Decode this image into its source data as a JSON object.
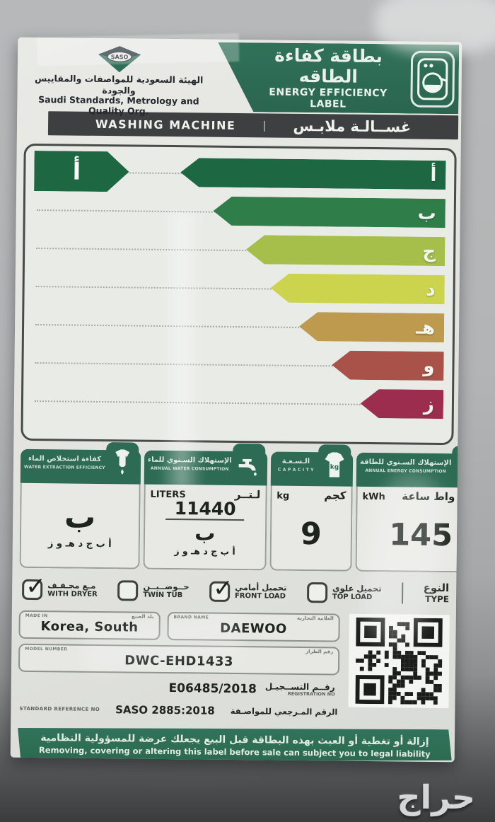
{
  "photo": {
    "watermark_text": "حراج"
  },
  "header": {
    "logo_text": "SASO",
    "org_ar": "الهيئة السعودية للمواصفات والمقاييس والجودة",
    "org_en": "Saudi Standards, Metrology and Quality Org.",
    "banner_title_ar": "بطاقة كفاءة الطاقه",
    "banner_title_en": "ENERGY EFFICIENCY LABEL"
  },
  "product_bar": {
    "en": "WASHING MACHINE",
    "separator": "|",
    "ar": "غســالـة ملابـس"
  },
  "rating": {
    "selected_letter": "أ",
    "scale": [
      {
        "letter": "أ",
        "color": "#1d6742",
        "width_pct": 64
      },
      {
        "letter": "ب",
        "color": "#2f7d49",
        "width_pct": 56
      },
      {
        "letter": "ج",
        "color": "#a6bf4b",
        "width_pct": 48
      },
      {
        "letter": "د",
        "color": "#ccd44d",
        "width_pct": 42
      },
      {
        "letter": "هـ",
        "color": "#bd9a4e",
        "width_pct": 35
      },
      {
        "letter": "و",
        "color": "#a85249",
        "width_pct": 27
      },
      {
        "letter": "ز",
        "color": "#9d2d4e",
        "width_pct": 20
      }
    ]
  },
  "metrics": {
    "water_extraction": {
      "title_ar": "كفاءة استخلاص الماء",
      "title_en": "WATER EXTRACTION EFFICIENCY",
      "grade": "ب",
      "scale_letters": "أ ب ج د هـ و ز"
    },
    "water_consumption": {
      "title_ar": "الإستهلاك السـنوي للماء",
      "title_en": "ANNUAL WATER CONSUMPTION",
      "unit_en": "LITERS",
      "unit_ar": "لـتــر",
      "value": "11440",
      "grade": "ب",
      "scale_letters": "أ ب ج د هـ و ز"
    },
    "capacity": {
      "title_ar": "الـسـعـة",
      "title_en": "C A P A C I T Y",
      "unit_en": "kg",
      "unit_ar": "كجم",
      "value": "9"
    },
    "energy": {
      "title_ar": "الإستهلاك السـنوي للطاقة",
      "title_en": "ANNUAL ENERGY CONSUMPTION",
      "unit_en": "kWh",
      "unit_ar": "كيلو واط ساعة",
      "value": "145"
    }
  },
  "type_row": {
    "label_ar": "النوع",
    "label_en": "TYPE",
    "options": [
      {
        "ar": "مـع مجـفـف",
        "en": "WITH DRYER",
        "checked": true
      },
      {
        "ar": "حــوضــيــن",
        "en": "TWIN TUB",
        "checked": false
      },
      {
        "ar": "تحميل أمامي",
        "en": "FRONT LOAD",
        "checked": true
      },
      {
        "ar": "تحميل علوي",
        "en": "TOP LOAD",
        "checked": false
      }
    ]
  },
  "fields": {
    "made_in": {
      "label_en": "MADE IN",
      "label_ar": "بلد الصنع",
      "value": "Korea, South"
    },
    "brand": {
      "label_en": "BRAND NAME",
      "label_ar": "العلامة التجارية",
      "value": "DAEWOO"
    },
    "model": {
      "label_en": "MODEL NUMBER",
      "label_ar": "رقم الطراز",
      "value": "DWC-EHD1433"
    },
    "registration": {
      "label_ar": "رقــم التســجيـل",
      "label_en": "REGISTRATION NO",
      "value": "E06485/2018"
    },
    "standard": {
      "label_en": "STANDARD REFERENCE NO",
      "label_ar": "الرقم المـرجعي للمواصـفة",
      "value": "SASO 2885:2018"
    }
  },
  "footer": {
    "warning_ar": "إزالة أو تغطية أو العبث بهذه البطاقة قبل البيع يجعلك عرضة للمسؤولية النظامية",
    "warning_en": "Removing, covering or altering this label before sale can subject you to legal liability"
  },
  "colors": {
    "brand_green": "#2d6b55",
    "bar_dark": "#3e3f41",
    "paper": "#e6e7e3"
  }
}
